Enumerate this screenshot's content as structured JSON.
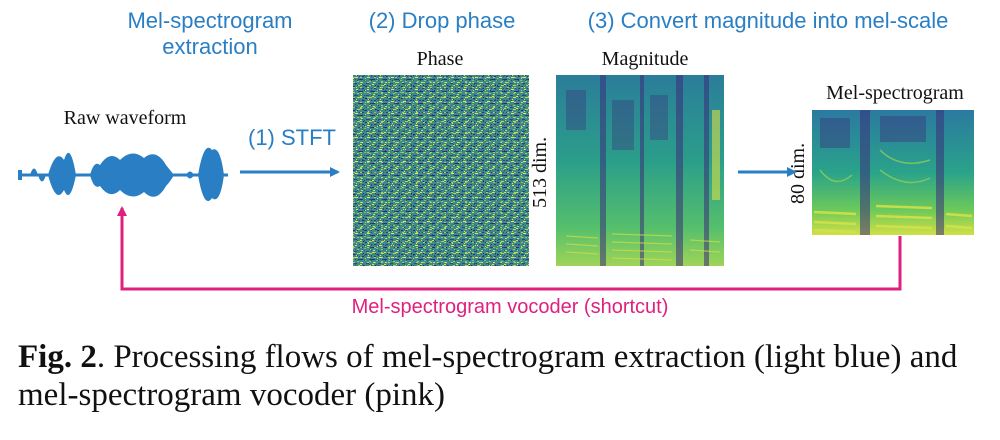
{
  "colors": {
    "extraction_blue": "#2a7fc4",
    "vocoder_pink": "#e0207f",
    "viridis_dark": "#3b2d7a",
    "viridis_mid": "#2a9a8a",
    "viridis_light": "#d8e04a"
  },
  "steps": {
    "extraction": "Mel-spectrogram\nextraction",
    "stft": "(1) STFT",
    "drop_phase": "(2) Drop phase",
    "convert": "(3) Convert magnitude into mel-scale"
  },
  "labels": {
    "raw_waveform": "Raw waveform",
    "phase": "Phase",
    "magnitude": "Magnitude",
    "mel_spectrogram": "Mel-spectrogram",
    "dim_513": "513 dim.",
    "dim_80": "80 dim.",
    "vocoder": "Mel-spectrogram vocoder (shortcut)"
  },
  "caption": {
    "fig": "Fig. 2",
    "text": ". Processing flows of mel-spectrogram extraction (light blue) and mel-spectrogram vocoder (pink)"
  }
}
